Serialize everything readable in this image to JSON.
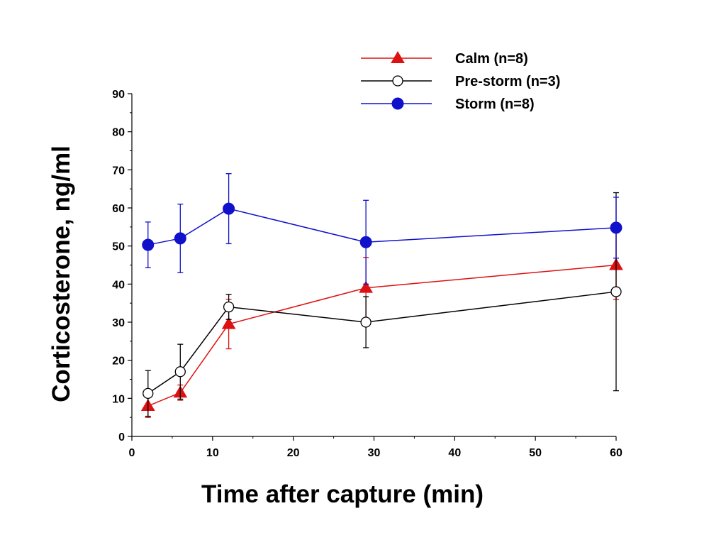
{
  "chart_data": {
    "type": "line",
    "xlabel": "Time after capture (min)",
    "ylabel": "Corticosterone, ng/ml",
    "xlim": [
      0,
      60
    ],
    "ylim": [
      0,
      90
    ],
    "x_ticks": [
      0,
      10,
      20,
      30,
      40,
      50,
      60
    ],
    "y_ticks": [
      0,
      10,
      20,
      30,
      40,
      50,
      60,
      70,
      80,
      90
    ],
    "grid": false,
    "legend_position": "top-right",
    "series": [
      {
        "name": "Calm (n=8)",
        "color": "#dd1111",
        "marker": "filled-triangle",
        "points": [
          {
            "x": 2,
            "y": 8,
            "err": 3
          },
          {
            "x": 6,
            "y": 11.5,
            "err": 2
          },
          {
            "x": 12,
            "y": 29.5,
            "err": 6.5
          },
          {
            "x": 29,
            "y": 39,
            "err": 8
          },
          {
            "x": 60,
            "y": 45,
            "err": 9
          }
        ]
      },
      {
        "name": "Pre-storm (n=3)",
        "color": "#000000",
        "marker": "open-circle",
        "points": [
          {
            "x": 2,
            "y": 11.3,
            "err": 6
          },
          {
            "x": 6,
            "y": 17,
            "err": 7.2
          },
          {
            "x": 12,
            "y": 34,
            "err": 3.3
          },
          {
            "x": 29,
            "y": 30,
            "err": 6.7
          },
          {
            "x": 60,
            "y": 38,
            "err": 26
          }
        ]
      },
      {
        "name": "Storm (n=8)",
        "color": "#1111cc",
        "marker": "filled-circle",
        "points": [
          {
            "x": 2,
            "y": 50.3,
            "err": 6
          },
          {
            "x": 6,
            "y": 52,
            "err": 9
          },
          {
            "x": 12,
            "y": 59.8,
            "err": 9.2
          },
          {
            "x": 29,
            "y": 51,
            "err": 11
          },
          {
            "x": 60,
            "y": 54.8,
            "err": 8
          }
        ]
      }
    ]
  }
}
